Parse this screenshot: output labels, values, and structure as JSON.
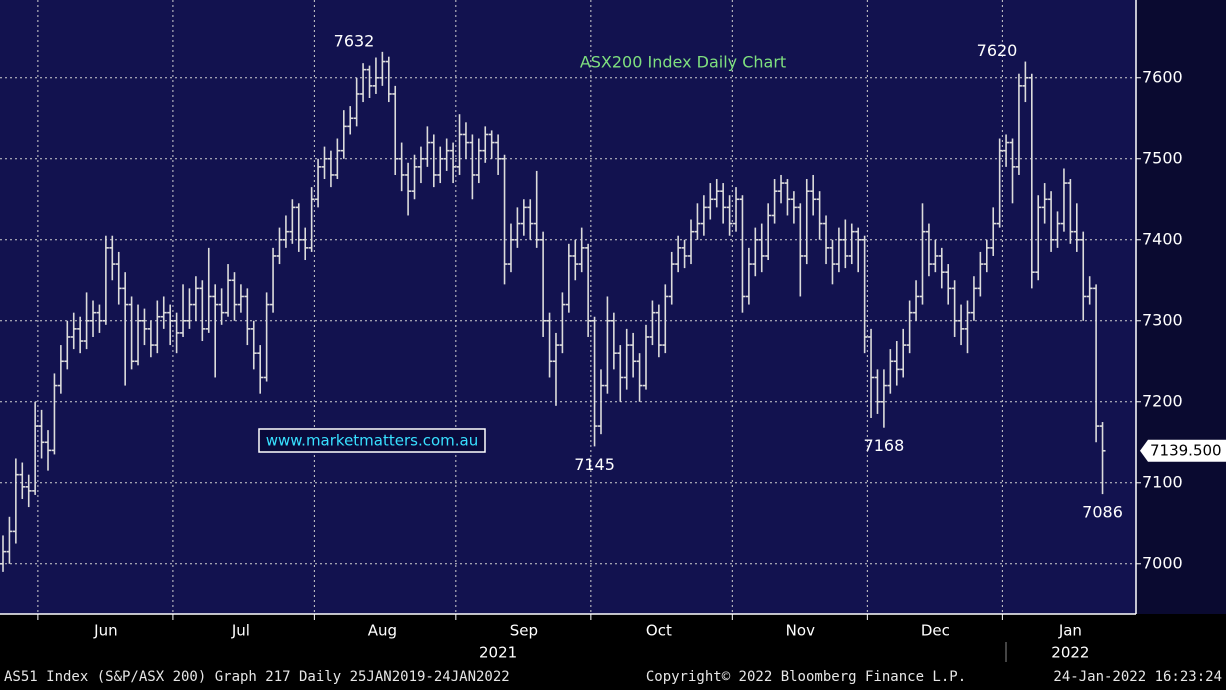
{
  "chart_data": {
    "type": "ohlc",
    "title": "ASX200 Index Daily Chart",
    "watermark": "www.marketmatters.com.au",
    "color": "#dcdcdc",
    "ylim": [
      6938,
      7696
    ],
    "yticks": [
      7000,
      7100,
      7200,
      7300,
      7400,
      7500,
      7600
    ],
    "grid": true,
    "categories": [
      null,
      null,
      null,
      null,
      null,
      null,
      null,
      null,
      null,
      null,
      null,
      null,
      null,
      null,
      null,
      null,
      "Jun",
      null,
      null,
      null,
      null,
      null,
      null,
      null,
      null,
      null,
      null,
      null,
      null,
      null,
      null,
      null,
      null,
      null,
      null,
      null,
      null,
      "Jul",
      null,
      null,
      null,
      null,
      null,
      null,
      null,
      null,
      null,
      null,
      null,
      null,
      null,
      null,
      null,
      null,
      null,
      null,
      null,
      null,
      null,
      "Aug",
      null,
      null,
      null,
      null,
      null,
      null,
      null,
      null,
      null,
      null,
      null,
      null,
      null,
      null,
      null,
      null,
      null,
      null,
      null,
      null,
      null,
      "Sep",
      null,
      null,
      null,
      null,
      null,
      null,
      null,
      null,
      null,
      null,
      null,
      null,
      null,
      null,
      null,
      null,
      null,
      null,
      null,
      null,
      "Oct",
      null,
      null,
      null,
      null,
      null,
      null,
      null,
      null,
      null,
      null,
      null,
      null,
      null,
      null,
      null,
      null,
      null,
      null,
      null,
      null,
      null,
      "Nov",
      null,
      null,
      null,
      null,
      null,
      null,
      null,
      null,
      null,
      null,
      null,
      null,
      null,
      null,
      null,
      null,
      null,
      null,
      null,
      null,
      "Dec",
      null,
      null,
      null,
      null,
      null,
      null,
      null,
      null,
      null,
      null,
      null,
      null,
      null,
      null,
      null,
      null,
      null,
      null,
      null,
      null,
      "Jan",
      null,
      null,
      null,
      null,
      null
    ],
    "year_categories": [
      null,
      null,
      null,
      null,
      null,
      null,
      null,
      null,
      null,
      null,
      null,
      null,
      null,
      null,
      null,
      null,
      null,
      null,
      null,
      null,
      null,
      null,
      null,
      null,
      null,
      null,
      null,
      null,
      null,
      null,
      null,
      null,
      null,
      null,
      null,
      null,
      null,
      null,
      null,
      null,
      null,
      null,
      null,
      null,
      null,
      null,
      null,
      null,
      null,
      null,
      null,
      null,
      null,
      null,
      null,
      null,
      null,
      null,
      null,
      null,
      null,
      null,
      null,
      null,
      null,
      null,
      null,
      null,
      null,
      null,
      null,
      null,
      null,
      null,
      null,
      null,
      null,
      "2021",
      null,
      null,
      null,
      null,
      null,
      null,
      null,
      null,
      null,
      null,
      null,
      null,
      null,
      null,
      null,
      null,
      null,
      null,
      null,
      null,
      null,
      null,
      null,
      null,
      null,
      null,
      null,
      null,
      null,
      null,
      null,
      null,
      null,
      null,
      null,
      null,
      null,
      null,
      null,
      null,
      null,
      null,
      null,
      null,
      null,
      null,
      null,
      null,
      null,
      null,
      null,
      null,
      null,
      null,
      null,
      null,
      null,
      null,
      null,
      null,
      null,
      null,
      null,
      null,
      null,
      null,
      null,
      null,
      null,
      null,
      null,
      null,
      null,
      null,
      null,
      null,
      null,
      null,
      null,
      null,
      null,
      null,
      null,
      null,
      null,
      null,
      null,
      null,
      "2022",
      null,
      null,
      null,
      null,
      null
    ],
    "open": [
      7000,
      7015,
      7040,
      7110,
      7095,
      7090,
      7170,
      7150,
      7140,
      7220,
      7250,
      7280,
      7290,
      7275,
      7300,
      7310,
      7300,
      7390,
      7370,
      7340,
      7320,
      7250,
      7300,
      7290,
      7270,
      7305,
      7310,
      7300,
      7285,
      7300,
      7320,
      7340,
      7290,
      7330,
      7320,
      7310,
      7350,
      7320,
      7330,
      7290,
      7260,
      7230,
      7320,
      7380,
      7400,
      7410,
      7440,
      7400,
      7390,
      7450,
      7490,
      7500,
      7480,
      7510,
      7540,
      7550,
      7580,
      7610,
      7590,
      7600,
      7620,
      7580,
      7500,
      7480,
      7460,
      7490,
      7500,
      7520,
      7480,
      7500,
      7510,
      7490,
      7530,
      7520,
      7480,
      7510,
      7530,
      7520,
      7500,
      7370,
      7400,
      7420,
      7440,
      7420,
      7400,
      7300,
      7250,
      7270,
      7320,
      7380,
      7370,
      7390,
      7300,
      7170,
      7220,
      7300,
      7260,
      7230,
      7270,
      7250,
      7220,
      7280,
      7310,
      7270,
      7330,
      7370,
      7390,
      7380,
      7410,
      7420,
      7440,
      7450,
      7460,
      7440,
      7420,
      7450,
      7330,
      7370,
      7400,
      7380,
      7430,
      7460,
      7470,
      7450,
      7440,
      7380,
      7460,
      7450,
      7420,
      7390,
      7370,
      7400,
      7380,
      7410,
      7400,
      7280,
      7230,
      7200,
      7220,
      7250,
      7240,
      7270,
      7310,
      7330,
      7410,
      7370,
      7380,
      7360,
      7340,
      7300,
      7290,
      7310,
      7340,
      7370,
      7390,
      7420,
      7510,
      7520,
      7490,
      7590,
      7600,
      7360,
      7440,
      7450,
      7400,
      7420,
      7470,
      7410,
      7400,
      7330,
      7340,
      7170
    ],
    "high": [
      7035,
      7058,
      7130,
      7125,
      7110,
      7200,
      7190,
      7165,
      7235,
      7270,
      7300,
      7310,
      7305,
      7335,
      7325,
      7320,
      7405,
      7405,
      7385,
      7360,
      7330,
      7320,
      7315,
      7300,
      7325,
      7330,
      7320,
      7310,
      7345,
      7340,
      7355,
      7350,
      7390,
      7345,
      7340,
      7370,
      7360,
      7345,
      7340,
      7300,
      7270,
      7335,
      7390,
      7415,
      7430,
      7450,
      7445,
      7415,
      7465,
      7500,
      7515,
      7510,
      7525,
      7560,
      7565,
      7600,
      7618,
      7615,
      7625,
      7632,
      7626,
      7590,
      7520,
      7495,
      7505,
      7515,
      7540,
      7530,
      7515,
      7525,
      7520,
      7555,
      7545,
      7530,
      7525,
      7540,
      7535,
      7530,
      7505,
      7420,
      7440,
      7450,
      7450,
      7485,
      7410,
      7310,
      7285,
      7335,
      7395,
      7400,
      7415,
      7395,
      7305,
      7240,
      7330,
      7310,
      7270,
      7290,
      7285,
      7260,
      7295,
      7325,
      7320,
      7345,
      7385,
      7405,
      7400,
      7425,
      7445,
      7455,
      7470,
      7475,
      7470,
      7455,
      7465,
      7455,
      7390,
      7415,
      7420,
      7445,
      7475,
      7480,
      7475,
      7460,
      7445,
      7475,
      7480,
      7460,
      7430,
      7400,
      7415,
      7425,
      7420,
      7415,
      7405,
      7290,
      7240,
      7240,
      7265,
      7275,
      7290,
      7325,
      7350,
      7445,
      7420,
      7400,
      7390,
      7370,
      7350,
      7320,
      7325,
      7355,
      7385,
      7400,
      7440,
      7525,
      7530,
      7525,
      7605,
      7620,
      7605,
      7455,
      7470,
      7460,
      7435,
      7488,
      7475,
      7445,
      7410,
      7355,
      7345,
      7175
    ],
    "low": [
      6990,
      7000,
      7025,
      7080,
      7070,
      7085,
      7130,
      7115,
      7135,
      7210,
      7240,
      7265,
      7260,
      7265,
      7280,
      7285,
      7295,
      7350,
      7320,
      7220,
      7240,
      7245,
      7270,
      7255,
      7260,
      7290,
      7270,
      7260,
      7280,
      7290,
      7300,
      7275,
      7285,
      7230,
      7295,
      7305,
      7300,
      7310,
      7270,
      7240,
      7210,
      7225,
      7310,
      7370,
      7390,
      7395,
      7385,
      7375,
      7385,
      7440,
      7475,
      7465,
      7475,
      7500,
      7530,
      7540,
      7570,
      7575,
      7580,
      7590,
      7570,
      7480,
      7460,
      7430,
      7450,
      7470,
      7490,
      7465,
      7470,
      7485,
      7470,
      7480,
      7500,
      7450,
      7470,
      7495,
      7500,
      7480,
      7345,
      7360,
      7390,
      7405,
      7400,
      7390,
      7280,
      7230,
      7195,
      7260,
      7310,
      7350,
      7360,
      7280,
      7145,
      7160,
      7210,
      7240,
      7200,
      7215,
      7230,
      7200,
      7215,
      7270,
      7255,
      7260,
      7320,
      7360,
      7365,
      7370,
      7400,
      7405,
      7425,
      7440,
      7420,
      7405,
      7410,
      7310,
      7320,
      7355,
      7360,
      7375,
      7420,
      7445,
      7430,
      7420,
      7330,
      7370,
      7430,
      7400,
      7370,
      7345,
      7360,
      7365,
      7370,
      7360,
      7260,
      7180,
      7185,
      7168,
      7210,
      7220,
      7230,
      7260,
      7300,
      7320,
      7355,
      7360,
      7340,
      7320,
      7280,
      7270,
      7260,
      7300,
      7330,
      7360,
      7380,
      7415,
      7490,
      7445,
      7480,
      7570,
      7340,
      7350,
      7420,
      7385,
      7390,
      7410,
      7395,
      7385,
      7300,
      7320,
      7150,
      7086
    ],
    "close": [
      7015,
      7040,
      7110,
      7095,
      7090,
      7170,
      7150,
      7140,
      7220,
      7250,
      7280,
      7290,
      7275,
      7300,
      7310,
      7300,
      7390,
      7370,
      7340,
      7320,
      7250,
      7300,
      7290,
      7270,
      7305,
      7310,
      7300,
      7285,
      7300,
      7320,
      7340,
      7290,
      7330,
      7320,
      7310,
      7350,
      7320,
      7330,
      7290,
      7260,
      7230,
      7320,
      7380,
      7400,
      7410,
      7440,
      7400,
      7390,
      7450,
      7490,
      7500,
      7480,
      7510,
      7540,
      7550,
      7580,
      7610,
      7590,
      7600,
      7620,
      7580,
      7500,
      7480,
      7460,
      7490,
      7500,
      7520,
      7480,
      7500,
      7510,
      7490,
      7530,
      7520,
      7480,
      7510,
      7530,
      7520,
      7500,
      7370,
      7400,
      7420,
      7440,
      7420,
      7400,
      7300,
      7250,
      7270,
      7320,
      7380,
      7370,
      7390,
      7300,
      7170,
      7220,
      7300,
      7260,
      7230,
      7270,
      7250,
      7220,
      7280,
      7310,
      7270,
      7330,
      7370,
      7390,
      7380,
      7410,
      7420,
      7440,
      7450,
      7460,
      7440,
      7420,
      7450,
      7330,
      7370,
      7400,
      7380,
      7430,
      7460,
      7470,
      7450,
      7440,
      7380,
      7460,
      7450,
      7420,
      7390,
      7370,
      7400,
      7380,
      7410,
      7400,
      7280,
      7230,
      7200,
      7220,
      7250,
      7240,
      7270,
      7310,
      7330,
      7410,
      7370,
      7380,
      7360,
      7340,
      7300,
      7290,
      7310,
      7340,
      7370,
      7390,
      7420,
      7510,
      7520,
      7490,
      7590,
      7600,
      7360,
      7440,
      7450,
      7400,
      7420,
      7470,
      7410,
      7400,
      7330,
      7340,
      7170,
      7139.5
    ],
    "annotations": [
      7632,
      7620,
      7145,
      7168,
      7086
    ],
    "last_price": {
      "value": 7139.5,
      "label": "7139.500"
    }
  },
  "footer": {
    "left": "AS51 Index (S&P/ASX 200) Graph 217  Daily 25JAN2019-24JAN2022",
    "center": "Copyright© 2022 Bloomberg Finance L.P.",
    "right": "24-Jan-2022 16:23:24"
  }
}
